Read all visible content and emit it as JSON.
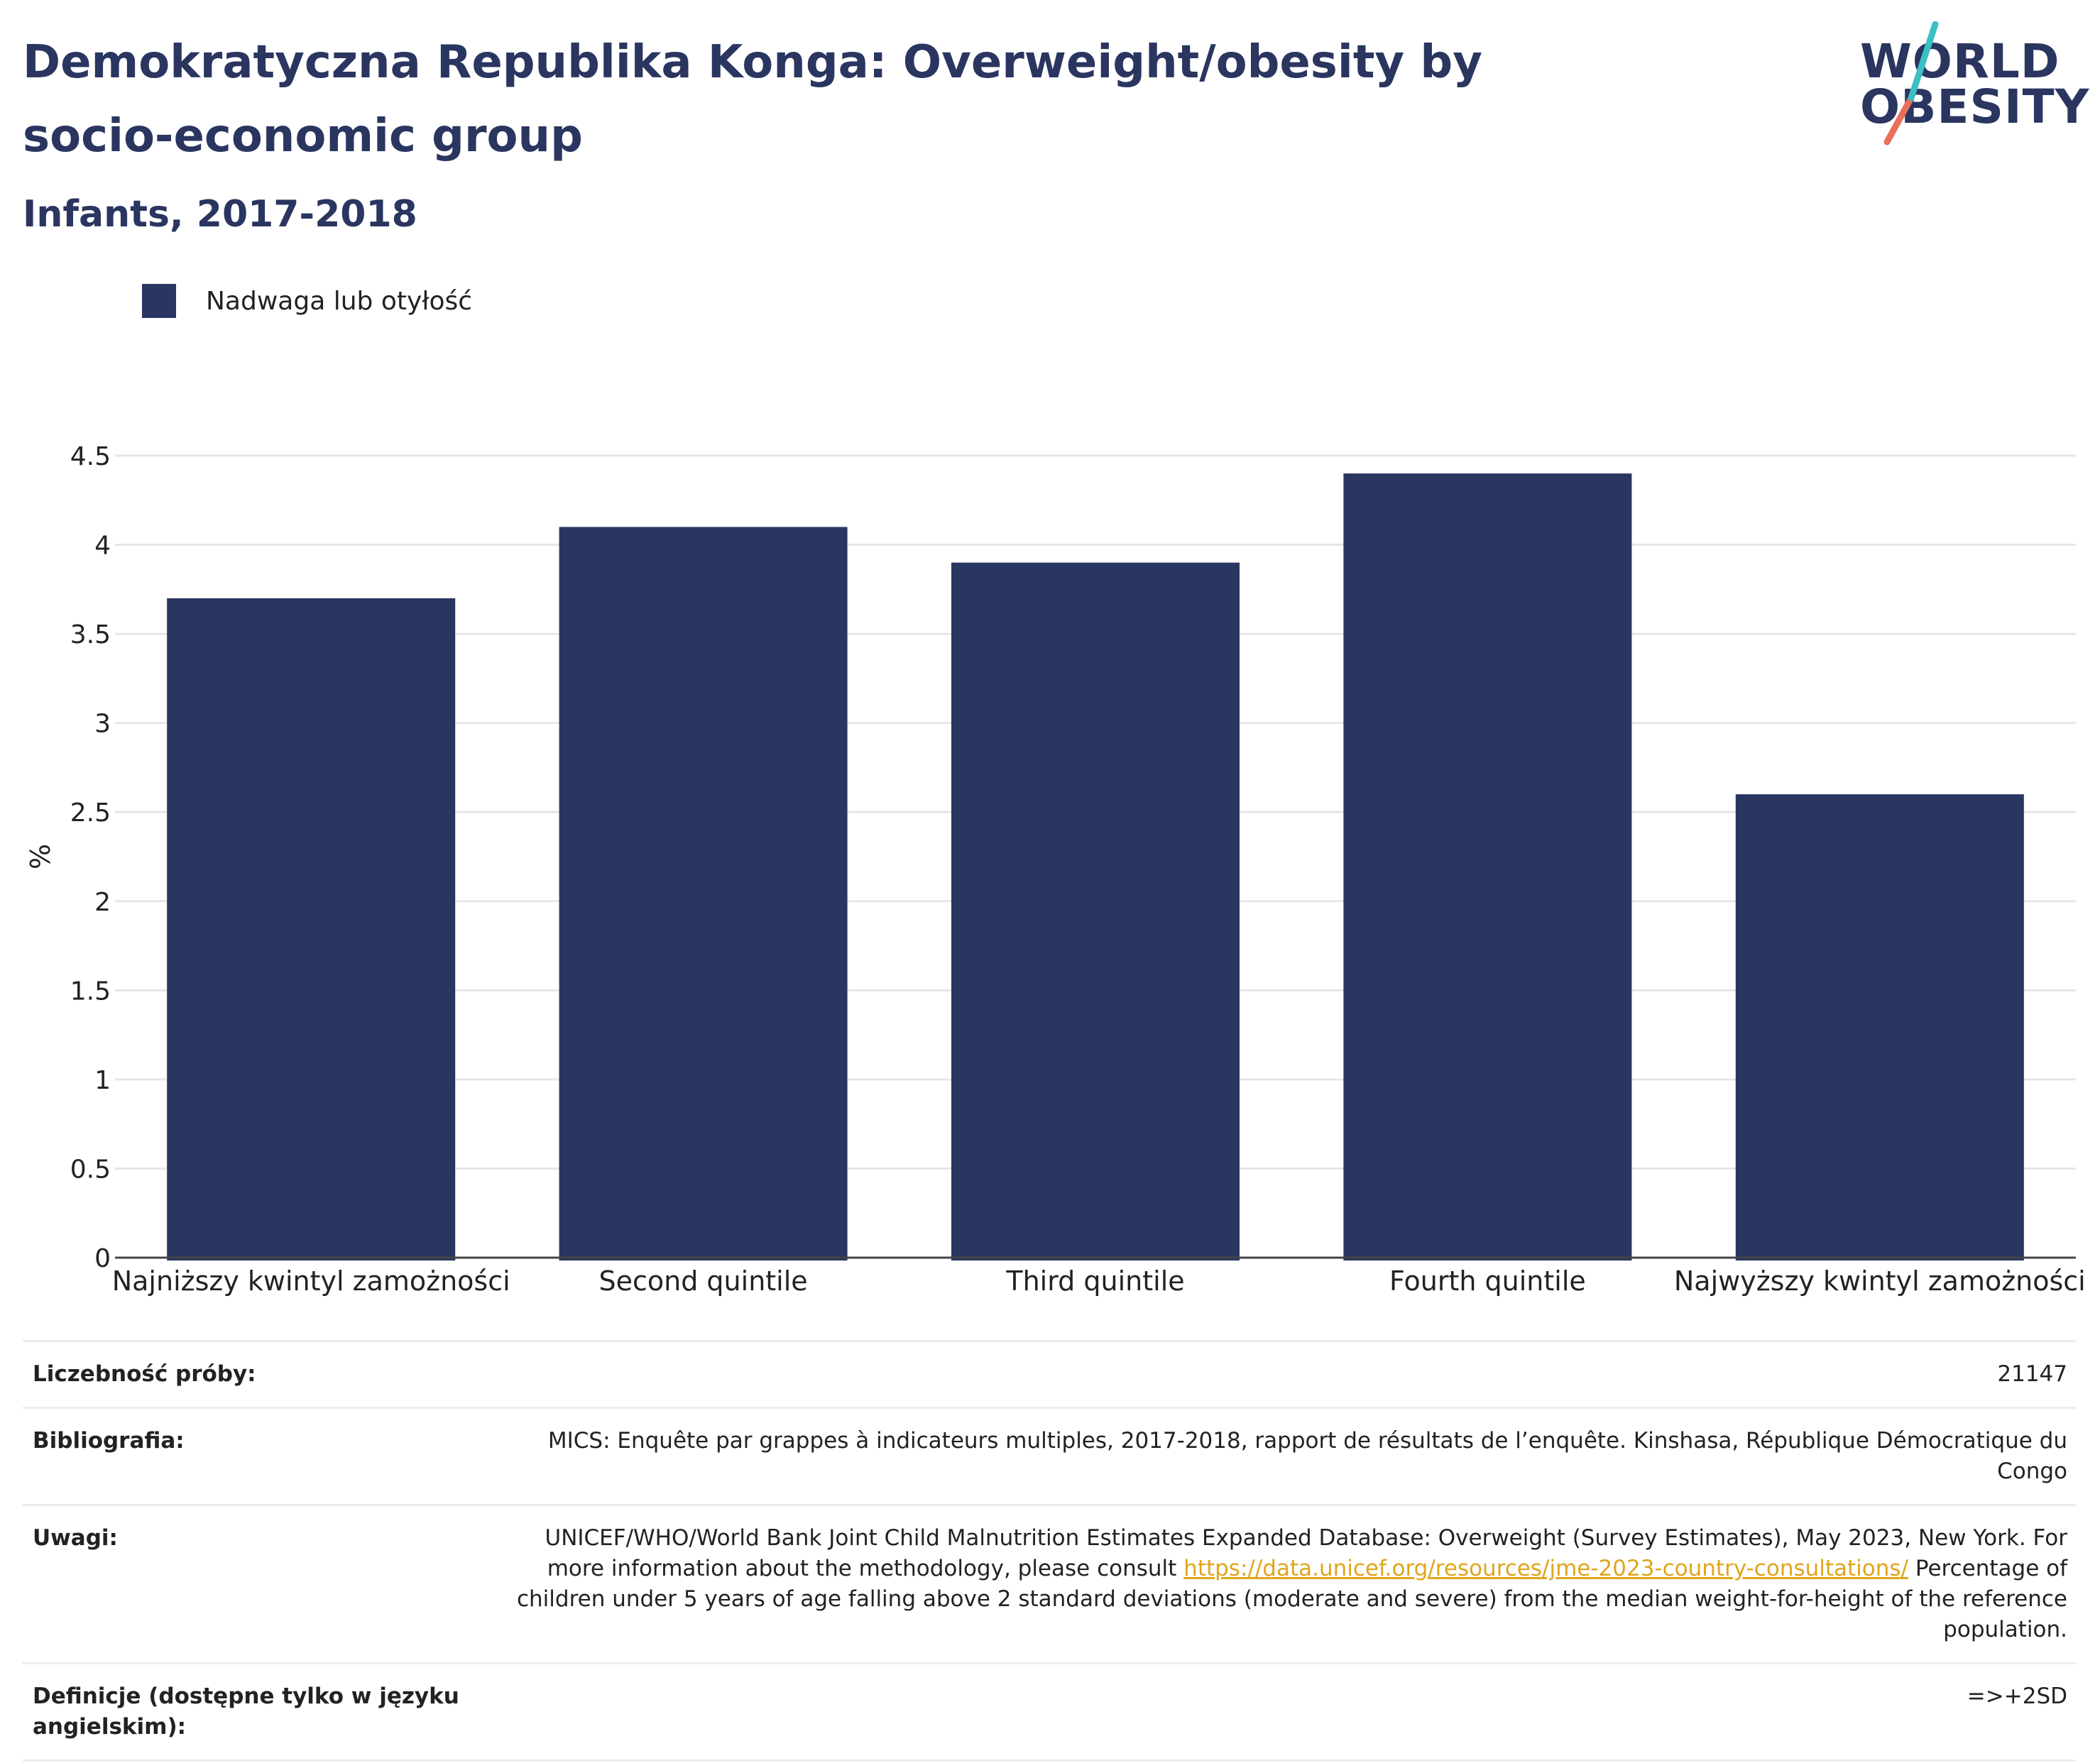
{
  "header": {
    "title": "Demokratyczna Republika Konga: Overweight/obesity by socio-economic group",
    "subtitle": "Infants, 2017-2018"
  },
  "logo": {
    "line1": "WORLD",
    "line2": "OBESITY",
    "colors": {
      "text": "#2a3560",
      "slash_teal": "#3bbfc3",
      "slash_coral": "#e8705a"
    }
  },
  "legend": {
    "label": "Nadwaga lub otyłość"
  },
  "chart_data": {
    "type": "bar",
    "categories": [
      "Najniższy kwintyl zamożności",
      "Second quintile",
      "Third quintile",
      "Fourth quintile",
      "Najwyższy kwintyl zamożności"
    ],
    "series": [
      {
        "name": "Nadwaga lub otyłość",
        "values": [
          3.7,
          4.1,
          3.9,
          4.4,
          2.6
        ],
        "color": "#2a3662"
      }
    ],
    "ylabel": "%",
    "xlabel": "",
    "ylim": [
      0,
      4.5
    ],
    "yticks": [
      "0",
      "0.5",
      "1",
      "1.5",
      "2",
      "2.5",
      "3",
      "3.5",
      "4",
      "4.5"
    ],
    "grid": true,
    "legend_position": "top-left"
  },
  "info": {
    "sample_label": "Liczebność próby:",
    "sample_value": "21147",
    "biblio_label": "Bibliografia:",
    "biblio_value": "MICS: Enquête par grappes à indicateurs multiples, 2017-2018, rapport de résultats de l’enquête. Kinshasa, République Démocratique du Congo",
    "notes_label": "Uwagi:",
    "notes_text_1": "UNICEF/WHO/World Bank Joint Child Malnutrition Estimates Expanded Database: Overweight (Survey Estimates), May 2023, New York. For more information about the methodology, please consult",
    "notes_link": "https://data.unicef.org/resources/jme-2023-country-consultations/",
    "notes_text_2": "Percentage of children under 5 years of age falling above 2 standard deviations (moderate and severe) from the median weight-for-height of the reference population.",
    "defs_label": "Definicje (dostępne tylko w języku angielskim):",
    "defs_value": "=>+2SD"
  }
}
